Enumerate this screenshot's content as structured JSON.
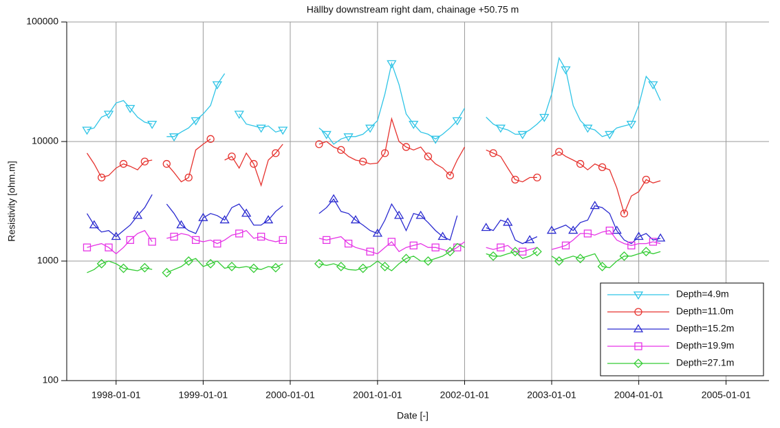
{
  "chart_data": {
    "type": "line",
    "title": "Hällby downstream right dam, chainage +50.75 m",
    "x_label": "Date  [-]",
    "y_label": "Resistivity  [ohm.m]",
    "y_scale": "log",
    "grid": true,
    "legend_location": "lower right",
    "xlim": [
      "1997-06-08",
      "2005-06-30"
    ],
    "xticks": [
      "1998-01-01",
      "1999-01-01",
      "2000-01-01",
      "2001-01-01",
      "2002-01-01",
      "2003-01-01",
      "2004-01-01",
      "2005-01-01"
    ],
    "ylim": [
      100,
      100000
    ],
    "yticks": [
      100,
      1000,
      10000,
      100000
    ],
    "x": [
      "1997-09-01",
      "1997-10-01",
      "1997-11-01",
      "1997-12-01",
      "1998-01-01",
      "1998-02-01",
      "1998-03-01",
      "1998-04-01",
      "1998-05-01",
      "1998-06-01",
      "1998-07-01",
      "1998-08-01",
      "1998-09-01",
      "1998-10-01",
      "1998-11-01",
      "1998-12-01",
      "1999-01-01",
      "1999-02-01",
      "1999-03-01",
      "1999-04-01",
      "1999-05-01",
      "1999-06-01",
      "1999-07-01",
      "1999-08-01",
      "1999-09-01",
      "1999-10-01",
      "1999-11-01",
      "1999-12-01",
      "2000-01-01",
      "2000-02-01",
      "2000-03-01",
      "2000-04-01",
      "2000-05-01",
      "2000-06-01",
      "2000-07-01",
      "2000-08-01",
      "2000-09-01",
      "2000-10-01",
      "2000-11-01",
      "2000-12-01",
      "2001-01-01",
      "2001-02-01",
      "2001-03-01",
      "2001-04-01",
      "2001-05-01",
      "2001-06-01",
      "2001-07-01",
      "2001-08-01",
      "2001-09-01",
      "2001-10-01",
      "2001-11-01",
      "2001-12-01",
      "2002-01-01",
      "2002-02-01",
      "2002-03-01",
      "2002-04-01",
      "2002-05-01",
      "2002-06-01",
      "2002-07-01",
      "2002-08-01",
      "2002-09-01",
      "2002-10-01",
      "2002-11-01",
      "2002-12-01",
      "2003-01-01",
      "2003-02-01",
      "2003-03-01",
      "2003-04-01",
      "2003-05-01",
      "2003-06-01",
      "2003-07-01",
      "2003-08-01",
      "2003-09-01",
      "2003-10-01",
      "2003-11-01",
      "2003-12-01",
      "2004-01-01",
      "2004-02-01",
      "2004-03-01",
      "2004-04-01"
    ],
    "series": [
      {
        "name": "Depth=4.9m",
        "color": "#2ec4e6",
        "marker": "triangle-down",
        "values": [
          12500,
          13000,
          16000,
          17000,
          21000,
          22000,
          19000,
          16000,
          14500,
          14000,
          null,
          11000,
          11000,
          12000,
          13000,
          15000,
          17000,
          20000,
          30000,
          37000,
          null,
          17000,
          14000,
          13500,
          13000,
          13500,
          12000,
          12500,
          null,
          null,
          null,
          null,
          13000,
          11500,
          9500,
          10500,
          11000,
          11000,
          11500,
          13000,
          15000,
          25000,
          45000,
          30000,
          17000,
          14000,
          12000,
          11500,
          10500,
          11500,
          13000,
          15000,
          19000,
          null,
          null,
          16000,
          14000,
          13000,
          12500,
          11500,
          11500,
          12500,
          14000,
          16000,
          25000,
          50000,
          40000,
          20000,
          15000,
          13000,
          12500,
          11000,
          11500,
          13000,
          13500,
          14000,
          20000,
          35000,
          30000,
          22000
        ]
      },
      {
        "name": "Depth=11.0m",
        "color": "#e6322e",
        "marker": "circle",
        "values": [
          8000,
          6500,
          5000,
          5200,
          6000,
          6500,
          6200,
          5800,
          6800,
          7000,
          null,
          6500,
          5500,
          4600,
          5000,
          8500,
          9500,
          10500,
          null,
          7000,
          7500,
          6000,
          8000,
          6500,
          4300,
          7000,
          8000,
          9500,
          null,
          null,
          null,
          null,
          9500,
          10000,
          9000,
          8500,
          7500,
          7000,
          6800,
          6500,
          6600,
          8000,
          15500,
          10000,
          9000,
          8500,
          9000,
          7500,
          6500,
          6000,
          5200,
          7000,
          9000,
          null,
          null,
          8500,
          8000,
          7500,
          6000,
          4800,
          4600,
          5000,
          5000,
          null,
          7500,
          8200,
          7500,
          7000,
          6500,
          5800,
          6500,
          6100,
          5800,
          4100,
          2500,
          3500,
          3800,
          4800,
          4500,
          4700
        ]
      },
      {
        "name": "Depth=15.2m",
        "color": "#2a2ad0",
        "marker": "triangle-up",
        "values": [
          2500,
          2000,
          1750,
          1800,
          1600,
          1800,
          2000,
          2400,
          2800,
          3600,
          null,
          3000,
          2500,
          2000,
          1800,
          1700,
          2300,
          2500,
          2400,
          2200,
          2800,
          3000,
          2500,
          2000,
          2000,
          2200,
          2600,
          2900,
          null,
          null,
          null,
          null,
          2500,
          2800,
          3300,
          2600,
          2500,
          2200,
          2000,
          1800,
          1700,
          2200,
          3000,
          2400,
          1800,
          2500,
          2400,
          2100,
          1800,
          1600,
          1500,
          2400,
          null,
          null,
          null,
          1900,
          1800,
          2200,
          2100,
          1500,
          1400,
          1500,
          1600,
          null,
          1800,
          1900,
          2000,
          1800,
          2100,
          2200,
          2900,
          2800,
          2500,
          1800,
          1500,
          1400,
          1600,
          1700,
          1500,
          1550
        ]
      },
      {
        "name": "Depth=19.9m",
        "color": "#e633e6",
        "marker": "square",
        "values": [
          1300,
          1350,
          1400,
          1300,
          1150,
          1300,
          1500,
          1700,
          1800,
          1450,
          null,
          1550,
          1600,
          1700,
          1650,
          1500,
          1450,
          1500,
          1400,
          1500,
          1650,
          1700,
          1800,
          1550,
          1600,
          1500,
          1450,
          1500,
          null,
          null,
          null,
          null,
          1550,
          1500,
          1550,
          1600,
          1400,
          1300,
          1250,
          1200,
          1150,
          1300,
          1450,
          1200,
          1300,
          1350,
          1400,
          1300,
          1300,
          1250,
          1200,
          1300,
          1450,
          null,
          null,
          1300,
          1250,
          1300,
          1350,
          1200,
          1200,
          1250,
          1300,
          null,
          1250,
          1300,
          1350,
          1500,
          1700,
          1700,
          1650,
          1750,
          1800,
          1500,
          1400,
          1350,
          1400,
          1400,
          1450,
          1400
        ]
      },
      {
        "name": "Depth=27.1m",
        "color": "#33cc33",
        "marker": "diamond",
        "values": [
          800,
          850,
          950,
          1000,
          950,
          870,
          850,
          830,
          880,
          850,
          null,
          800,
          850,
          900,
          1000,
          1050,
          900,
          950,
          1000,
          870,
          900,
          880,
          900,
          870,
          850,
          900,
          880,
          950,
          null,
          null,
          null,
          null,
          950,
          920,
          950,
          900,
          850,
          840,
          870,
          900,
          1000,
          900,
          830,
          950,
          1050,
          1100,
          1000,
          1000,
          1050,
          1100,
          1200,
          1400,
          1300,
          null,
          null,
          1150,
          1100,
          1100,
          1150,
          1200,
          1050,
          1100,
          1200,
          null,
          1100,
          1000,
          1050,
          1100,
          1050,
          1100,
          1150,
          900,
          880,
          1000,
          1100,
          1100,
          1150,
          1200,
          1150,
          1200
        ]
      }
    ]
  }
}
